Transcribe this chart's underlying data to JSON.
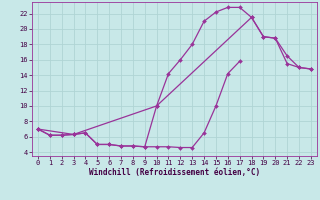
{
  "bg_color": "#c8e8e8",
  "grid_color": "#b0d4d4",
  "line_color": "#993399",
  "marker_color": "#993399",
  "xlabel": "Windchill (Refroidissement éolien,°C)",
  "xlim": [
    -0.5,
    23.5
  ],
  "ylim": [
    3.5,
    23.5
  ],
  "xticks": [
    0,
    1,
    2,
    3,
    4,
    5,
    6,
    7,
    8,
    9,
    10,
    11,
    12,
    13,
    14,
    15,
    16,
    17,
    18,
    19,
    20,
    21,
    22,
    23
  ],
  "yticks": [
    4,
    6,
    8,
    10,
    12,
    14,
    16,
    18,
    20,
    22
  ],
  "curve1_x": [
    0,
    1,
    2,
    3,
    4,
    5,
    6,
    7,
    8,
    9,
    10,
    11,
    12,
    13,
    14,
    15,
    16,
    17,
    18,
    19,
    20,
    21,
    22,
    23
  ],
  "curve1_y": [
    7.0,
    6.2,
    6.2,
    6.3,
    6.5,
    5.0,
    5.0,
    4.8,
    4.8,
    4.7,
    10.0,
    14.2,
    16.0,
    18.0,
    21.0,
    22.2,
    22.8,
    22.8,
    21.5,
    19.0,
    18.8,
    15.5,
    15.0,
    14.8
  ],
  "curve2_x": [
    0,
    1,
    2,
    3,
    4,
    5,
    6,
    7,
    8,
    9,
    10,
    11,
    12,
    13,
    14,
    15,
    16,
    17
  ],
  "curve2_y": [
    7.0,
    6.2,
    6.2,
    6.3,
    6.5,
    5.0,
    5.0,
    4.8,
    4.8,
    4.7,
    4.7,
    4.7,
    4.6,
    4.6,
    6.5,
    10.0,
    14.2,
    15.8
  ],
  "curve3_x": [
    0,
    3,
    10,
    18,
    19,
    20,
    21,
    22,
    23
  ],
  "curve3_y": [
    7.0,
    6.3,
    10.0,
    21.5,
    19.0,
    18.8,
    16.5,
    15.0,
    14.8
  ],
  "spine_color": "#993399"
}
